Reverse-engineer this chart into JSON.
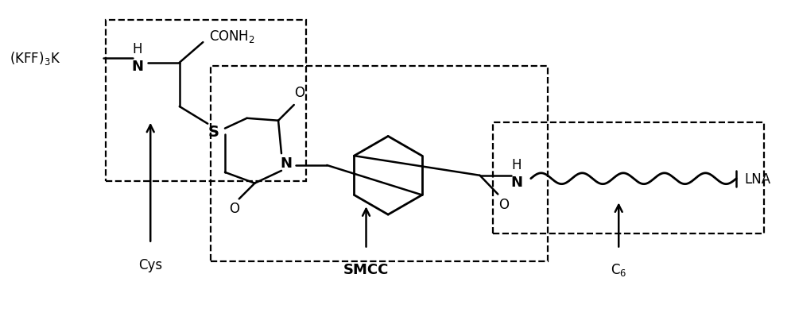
{
  "bg_color": "#ffffff",
  "fig_width": 10.0,
  "fig_height": 4.14,
  "dpi": 100,
  "labels": {
    "kff": "(KFF)₃K",
    "conh2": "CONH₂",
    "S": "S",
    "N": "N",
    "H": "H",
    "O": "O",
    "LNA": "LNA",
    "Cys": "Cys",
    "SMCC": "SMCC",
    "C6": "C₆"
  }
}
